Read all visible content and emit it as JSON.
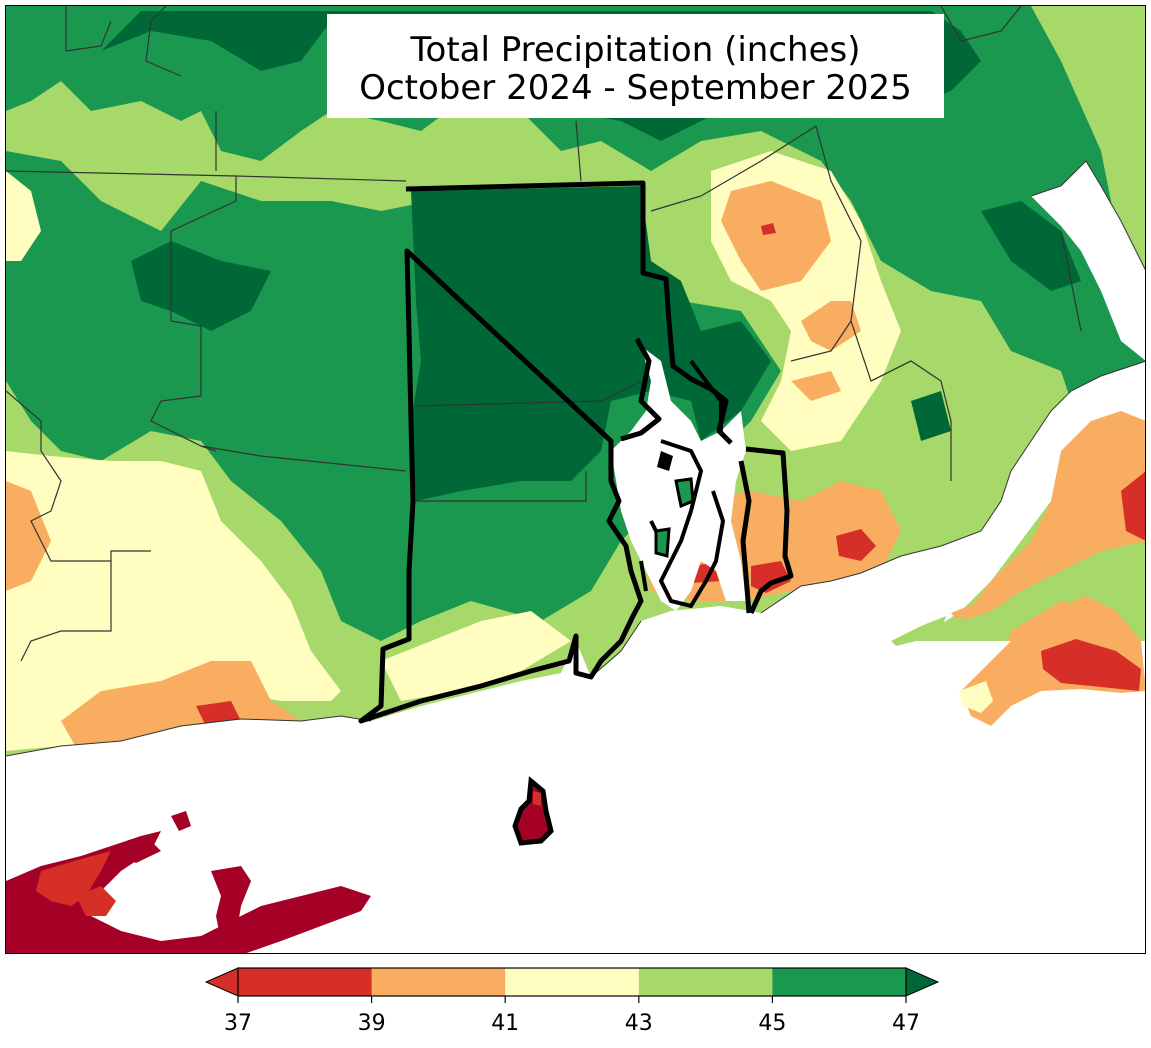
{
  "title": {
    "line1": "Total Precipitation (inches)",
    "line2": "October 2024 - September 2025"
  },
  "colorbar": {
    "ticks": [
      "37",
      "39",
      "41",
      "43",
      "45",
      "47"
    ],
    "colors": [
      "#d62f27",
      "#f9ad60",
      "#fffdbf",
      "#a6d96a",
      "#1a9850",
      "#006837"
    ],
    "under_color": "#a50026",
    "over_color": "#006837",
    "extend": "both"
  },
  "map": {
    "background": "#ffffff",
    "water": "#ffffff",
    "state_outline": "#000000",
    "county_outline": "#333333"
  }
}
